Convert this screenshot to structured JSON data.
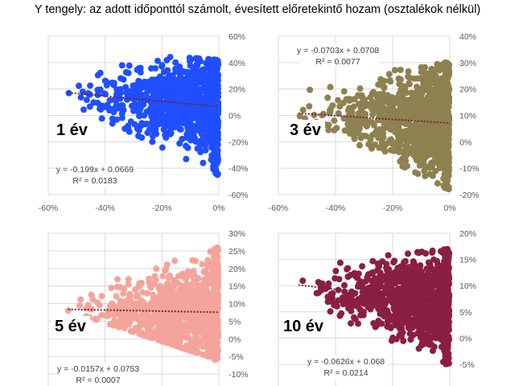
{
  "title": "Y tengely: az adott időponttól számolt, évesített előretekintő hozam (osztalékok nélkül)",
  "chart_data": [
    {
      "type": "scatter",
      "panel_label": "1 év",
      "color": "#1F4FFF",
      "trend_color": "#7B1F3A",
      "equation": "y = -0.199x + 0.0669",
      "r2": "R² = 0.0183",
      "slope": -0.199,
      "intercept": 0.0669,
      "xlim": [
        -0.6,
        0
      ],
      "ylim": [
        -0.6,
        0.6
      ],
      "xticks": [
        "-60%",
        "-40%",
        "-20%",
        "0%"
      ],
      "xtick_values": [
        -0.6,
        -0.4,
        -0.2,
        0
      ],
      "yticks": [
        "60%",
        "40%",
        "20%",
        "0%",
        "-20%",
        "-40%",
        "-60%"
      ],
      "ytick_values": [
        0.6,
        0.4,
        0.2,
        0,
        -0.2,
        -0.4,
        -0.6
      ],
      "trend_x_range": [
        -0.53,
        0
      ],
      "spread": {
        "left_y": [
          0.1,
          0.5
        ],
        "right_y": [
          -0.45,
          0.42
        ]
      },
      "seed": 11
    },
    {
      "type": "scatter",
      "panel_label": "3 év",
      "color": "#8E8150",
      "trend_color": "#7B1F3A",
      "equation": "y = -0.0703x + 0.0708",
      "r2": "R² = 0.0077",
      "slope": -0.0703,
      "intercept": 0.0708,
      "xlim": [
        -0.6,
        0
      ],
      "ylim": [
        -0.2,
        0.4
      ],
      "xticks": [
        "-60%",
        "-40%",
        "-20%",
        "0%"
      ],
      "xtick_values": [
        -0.6,
        -0.4,
        -0.2,
        0
      ],
      "yticks": [
        "40%",
        "30%",
        "20%",
        "10%",
        "0%",
        "-10%",
        "-20%"
      ],
      "ytick_values": [
        0.4,
        0.3,
        0.2,
        0.1,
        0,
        -0.1,
        -0.2
      ],
      "trend_x_range": [
        -0.53,
        0
      ],
      "spread": {
        "left_y": [
          0.1,
          0.23
        ],
        "right_y": [
          -0.18,
          0.3
        ]
      },
      "seed": 23
    },
    {
      "type": "scatter",
      "panel_label": "5 év",
      "color": "#F4A49A",
      "trend_color": "#7B1F3A",
      "equation": "y = -0.0157x + 0.0753",
      "r2": "R² = 0.0007",
      "slope": -0.0157,
      "intercept": 0.0753,
      "xlim": [
        -0.6,
        0
      ],
      "ylim": [
        -0.1,
        0.3
      ],
      "xticks": [],
      "xtick_values": [
        -0.6,
        -0.4,
        -0.2,
        0
      ],
      "yticks": [
        "30%",
        "25%",
        "20%",
        "15%",
        "10%",
        "5%",
        "0%",
        "-5%",
        "-10%"
      ],
      "ytick_values": [
        0.3,
        0.25,
        0.2,
        0.15,
        0.1,
        0.05,
        0,
        -0.05,
        -0.1
      ],
      "trend_x_range": [
        -0.53,
        0
      ],
      "spread": {
        "left_y": [
          0.08,
          0.2
        ],
        "right_y": [
          -0.06,
          0.26
        ]
      },
      "seed": 37
    },
    {
      "type": "scatter",
      "panel_label": "10 év",
      "color": "#8B1E43",
      "trend_color": "#7B1F3A",
      "equation": "y = -0.0626x + 0.068",
      "r2": "R² = 0.0214",
      "slope": -0.0626,
      "intercept": 0.068,
      "xlim": [
        -0.6,
        0
      ],
      "ylim": [
        -0.05,
        0.2
      ],
      "xticks": [],
      "xtick_values": [
        -0.6,
        -0.4,
        -0.2,
        0
      ],
      "yticks": [
        "20%",
        "15%",
        "10%",
        "5%",
        "0%",
        "-5%"
      ],
      "ytick_values": [
        0.2,
        0.15,
        0.1,
        0.05,
        0,
        -0.05
      ],
      "trend_x_range": [
        -0.53,
        0
      ],
      "spread": {
        "left_y": [
          0.06,
          0.14
        ],
        "right_y": [
          -0.05,
          0.17
        ]
      },
      "seed": 53
    }
  ]
}
